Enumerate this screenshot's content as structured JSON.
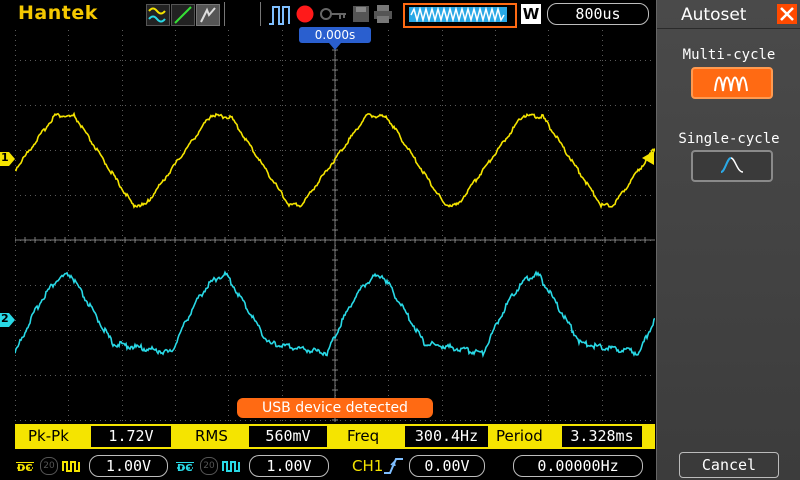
{
  "topbar": {
    "brand": "Hantek",
    "timebase": "800us",
    "acq_mode_icon": "W",
    "icons": [
      "channel-mode-icon",
      "ramp-icon",
      "persistence-icon",
      "pulse-trigger-icon",
      "run-stop-icon",
      "key-icon",
      "save-icon",
      "print-icon"
    ]
  },
  "trigger_position": "0.000s",
  "channels": {
    "ch1": {
      "marker": "1",
      "color": "#f5e400"
    },
    "ch2": {
      "marker": "2",
      "color": "#29d9e6"
    }
  },
  "toast": "USB device detected",
  "measurements": [
    {
      "label": "Pk-Pk",
      "value": "1.72V"
    },
    {
      "label": "RMS",
      "value": "560mV"
    },
    {
      "label": "Freq",
      "value": "300.4Hz"
    },
    {
      "label": "Period",
      "value": "3.328ms"
    }
  ],
  "bottombar": {
    "ch1_coupling": "DC",
    "ch1_bw": "20",
    "ch1_scale": "1.00V",
    "ch2_coupling": "DC",
    "ch2_bw": "20",
    "ch2_scale": "1.00V",
    "trigger_source": "CH1",
    "trigger_level": "0.00V",
    "trigger_freq": "0.00000Hz"
  },
  "sidebar": {
    "title": "Autoset",
    "multi_cycle_label": "Multi-cycle",
    "single_cycle_label": "Single-cycle",
    "cancel_label": "Cancel"
  },
  "colors": {
    "accent_orange": "#ff6a13",
    "ch1_yellow": "#f5e400",
    "ch2_cyan": "#29d9e6",
    "brand_yellow": "#f5c800"
  }
}
